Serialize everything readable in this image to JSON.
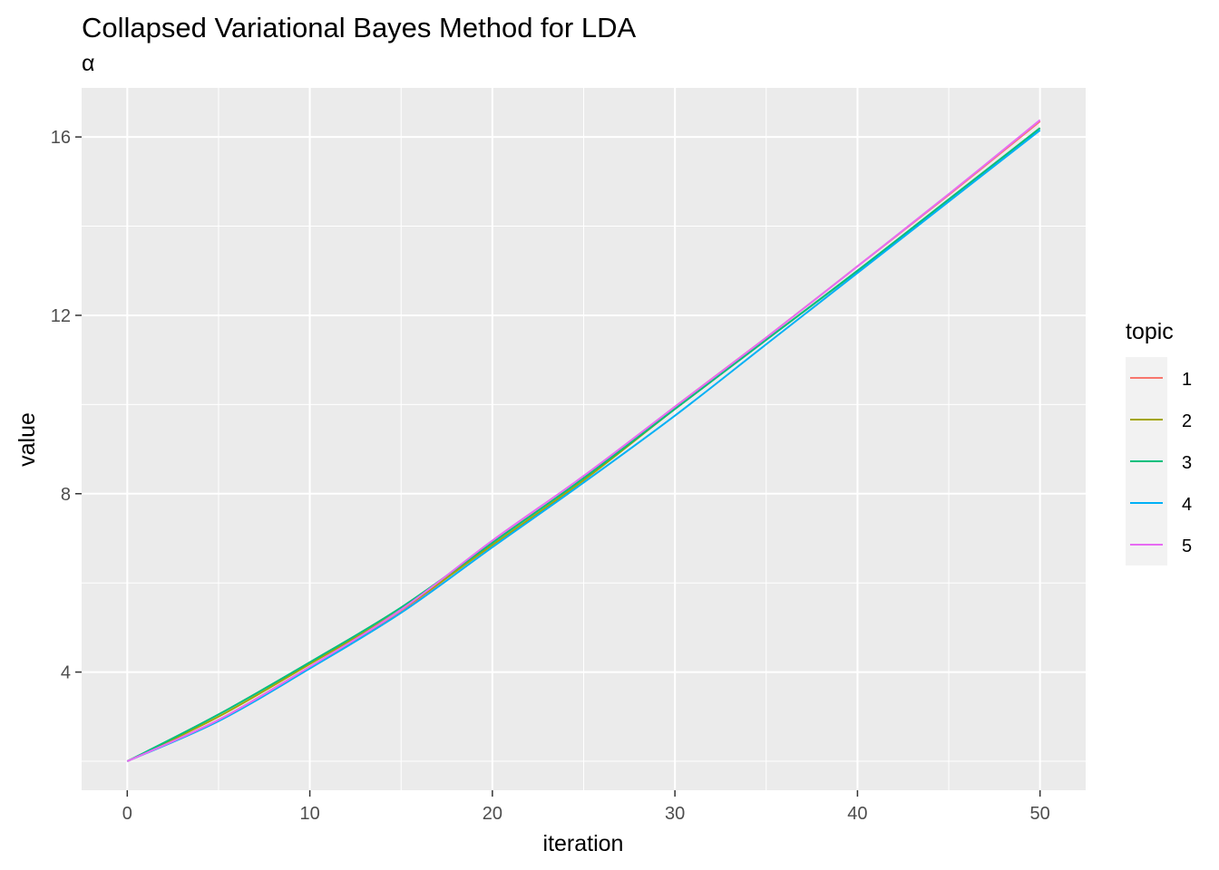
{
  "chart_data": {
    "type": "line",
    "title": "Collapsed Variational Bayes Method for LDA",
    "subtitle": "α",
    "xlabel": "iteration",
    "ylabel": "value",
    "xlim": [
      -2.5,
      52.5
    ],
    "ylim": [
      1.35,
      17.1
    ],
    "x_ticks": [
      0,
      10,
      20,
      30,
      40,
      50
    ],
    "y_ticks": [
      4,
      8,
      12,
      16
    ],
    "grid": true,
    "legend": {
      "title": "topic",
      "placement": "right"
    },
    "series": [
      {
        "name": "1",
        "color": "#F8766D",
        "points": [
          [
            0,
            2.0
          ],
          [
            5,
            2.93
          ],
          [
            10,
            4.12
          ],
          [
            15,
            5.35
          ],
          [
            20,
            6.9
          ],
          [
            25,
            8.35
          ],
          [
            30,
            9.95
          ],
          [
            35,
            11.5
          ],
          [
            40,
            13.1
          ],
          [
            45,
            14.7
          ],
          [
            50,
            16.35
          ]
        ]
      },
      {
        "name": "2",
        "color": "#A3A500",
        "points": [
          [
            0,
            2.0
          ],
          [
            5,
            3.0
          ],
          [
            10,
            4.18
          ],
          [
            15,
            5.4
          ],
          [
            20,
            6.85
          ],
          [
            25,
            8.3
          ],
          [
            30,
            9.9
          ],
          [
            35,
            11.45
          ],
          [
            40,
            13.0
          ],
          [
            45,
            14.6
          ],
          [
            50,
            16.2
          ]
        ]
      },
      {
        "name": "3",
        "color": "#00BF7D",
        "points": [
          [
            0,
            2.0
          ],
          [
            5,
            3.05
          ],
          [
            10,
            4.22
          ],
          [
            15,
            5.45
          ],
          [
            20,
            6.9
          ],
          [
            25,
            8.35
          ],
          [
            30,
            9.9
          ],
          [
            35,
            11.45
          ],
          [
            40,
            13.0
          ],
          [
            45,
            14.6
          ],
          [
            50,
            16.2
          ]
        ]
      },
      {
        "name": "4",
        "color": "#00B0F6",
        "points": [
          [
            0,
            2.0
          ],
          [
            5,
            2.9
          ],
          [
            10,
            4.08
          ],
          [
            15,
            5.33
          ],
          [
            20,
            6.8
          ],
          [
            25,
            8.25
          ],
          [
            30,
            9.75
          ],
          [
            35,
            11.35
          ],
          [
            40,
            12.95
          ],
          [
            45,
            14.55
          ],
          [
            50,
            16.15
          ]
        ]
      },
      {
        "name": "5",
        "color": "#E76BF3",
        "points": [
          [
            0,
            2.0
          ],
          [
            5,
            2.93
          ],
          [
            10,
            4.12
          ],
          [
            15,
            5.4
          ],
          [
            20,
            6.95
          ],
          [
            25,
            8.4
          ],
          [
            30,
            9.95
          ],
          [
            35,
            11.5
          ],
          [
            40,
            13.1
          ],
          [
            45,
            14.72
          ],
          [
            50,
            16.38
          ]
        ]
      }
    ]
  }
}
